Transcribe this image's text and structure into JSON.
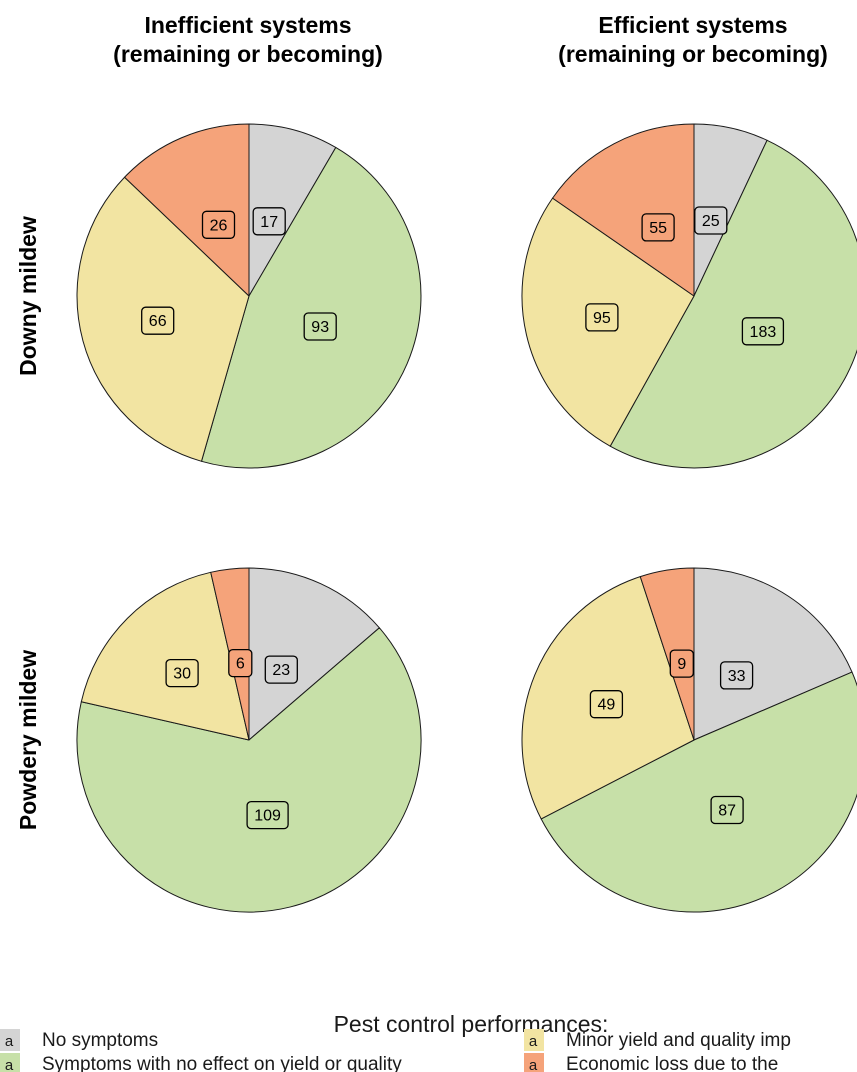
{
  "chart_data": {
    "type": "pie",
    "title": "",
    "columns": [
      "Inefficient systems\n(remaining or becoming)",
      "Efficient systems\n(remaining or becoming)"
    ],
    "rows": [
      "Downy mildew",
      "Powdery mildew"
    ],
    "categories": [
      "No symptoms",
      "Symptoms with no effect on yield or quality",
      "Minor yield and quality impact",
      "Economic loss due to the disease"
    ],
    "colors": [
      "#d4d4d4",
      "#c7e0a8",
      "#f2e4a2",
      "#f5a37a"
    ],
    "panels": [
      {
        "row": "Downy mildew",
        "column": "Inefficient systems\n(remaining or becoming)",
        "values": [
          17,
          93,
          66,
          26
        ]
      },
      {
        "row": "Downy mildew",
        "column": "Efficient systems\n(remaining or becoming)",
        "values": [
          25,
          183,
          95,
          55
        ]
      },
      {
        "row": "Powdery mildew",
        "column": "Inefficient systems\n(remaining or becoming)",
        "values": [
          23,
          109,
          30,
          6
        ]
      },
      {
        "row": "Powdery mildew",
        "column": "Efficient systems\n(remaining or becoming)",
        "values": [
          33,
          87,
          49,
          9
        ]
      }
    ],
    "legend": {
      "title": "Pest control performances:",
      "key_glyph": "a",
      "position": "bottom",
      "entries": [
        "No symptoms",
        "Symptoms with no effect on yield or quality",
        "Minor yield and quality imp",
        "Economic loss due to the"
      ]
    }
  }
}
